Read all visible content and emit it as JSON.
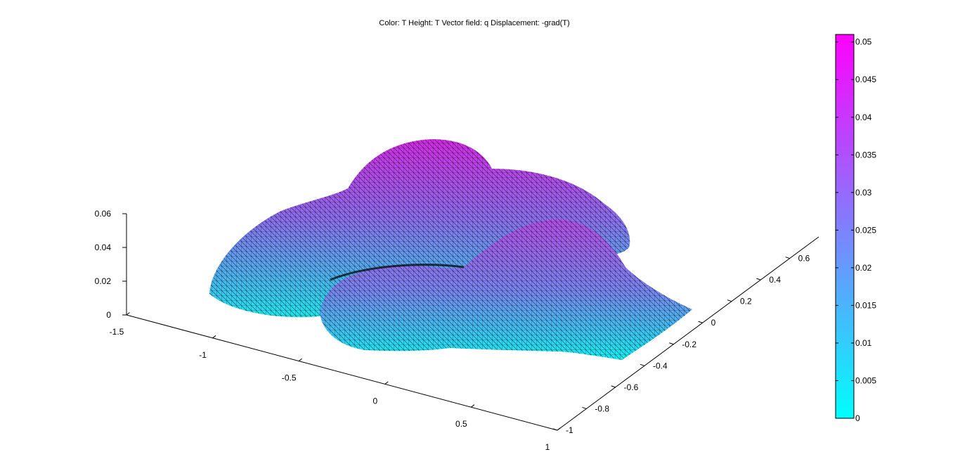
{
  "chart_data": {
    "type": "surface3d",
    "title": "Color: T  Height: T  Vector field: q  Displacement: -grad(T)",
    "x_axis": {
      "range": [
        -1.5,
        1
      ],
      "ticks": [
        -1.5,
        -1,
        -0.5,
        0,
        0.5,
        1
      ],
      "tick_labels": [
        "-1.5",
        "-1",
        "-0.5",
        "0",
        "0.5",
        "1"
      ]
    },
    "y_axis": {
      "range": [
        -1,
        0.8
      ],
      "ticks": [
        -1,
        -0.8,
        -0.6,
        -0.4,
        -0.2,
        0,
        0.2,
        0.4,
        0.6
      ],
      "tick_labels": [
        "-1",
        "-0.8",
        "-0.6",
        "-0.4",
        "-0.2",
        "0",
        "0.2",
        "0.4",
        "0.6"
      ]
    },
    "z_axis": {
      "range": [
        0,
        0.06
      ],
      "ticks": [
        0,
        0.02,
        0.04,
        0.06
      ],
      "tick_labels": [
        "0",
        "0.02",
        "0.04",
        "0.06"
      ]
    },
    "colorbar": {
      "range": [
        0,
        0.051
      ],
      "ticks": [
        0,
        0.005,
        0.01,
        0.015,
        0.02,
        0.025,
        0.03,
        0.035,
        0.04,
        0.045,
        0.05
      ],
      "tick_labels": [
        "0",
        "0.005",
        "0.01",
        "0.015",
        "0.02",
        "0.025",
        "0.03",
        "0.035",
        "0.04",
        "0.045",
        "0.05"
      ],
      "colormap": "cool",
      "color_low": "#00ffff",
      "color_high": "#ff00ff",
      "position": "right"
    },
    "surface": {
      "peak_value": 0.05,
      "mesh": "triangular",
      "edge_color": "#000000"
    },
    "grid": false
  }
}
